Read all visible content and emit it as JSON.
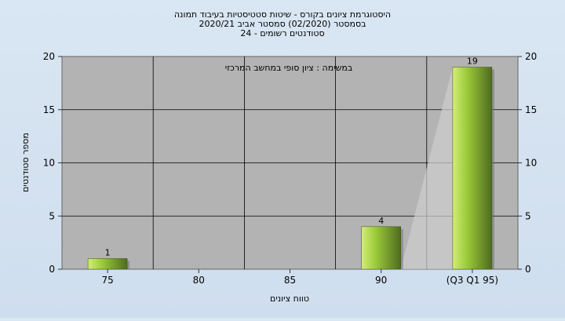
{
  "chart_data": {
    "type": "bar",
    "title_lines": [
      "היסטוגרמת ציונים בקורס - שיטות סטטיסטיות בעיבוד תמונה",
      "בסמסטר  (02/2020)  סמסטר אביב 2020/21",
      "סטודנטים רשומים - 24"
    ],
    "annotation": "במשימה : ציון סופי במחשב המרכזי",
    "xlabel": "טווח ציונים",
    "ylabel": "מספר סטודנטים",
    "categories": [
      "75",
      "80",
      "85",
      "90",
      "(Q3 Q1 95)"
    ],
    "values": [
      1,
      0,
      0,
      4,
      19
    ],
    "data_labels": [
      "1",
      "",
      "",
      "4",
      "19"
    ],
    "yticks": [
      "0",
      "5",
      "10",
      "15",
      "20"
    ],
    "ylim": [
      0,
      20
    ],
    "grid": true,
    "colors": {
      "plot_bg": "#b3b3b3",
      "bar_light": "#d4ec7a",
      "bar_mid": "#9ccc3a",
      "bar_dark": "#4f6b1f",
      "grid": "#000000",
      "wedge": "#cfcfcf"
    }
  }
}
